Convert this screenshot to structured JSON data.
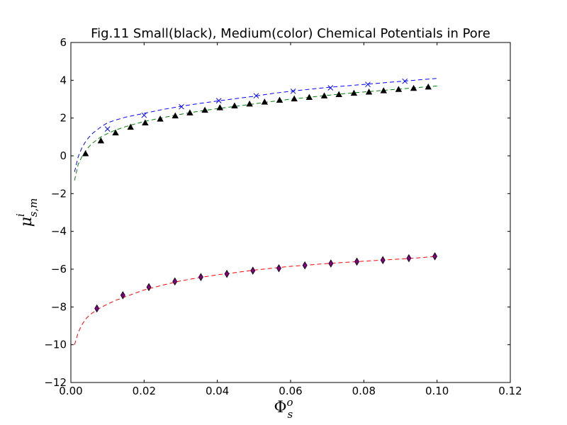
{
  "chart_data": {
    "type": "scatter",
    "title": "Fig.11 Small(black), Medium(color) Chemical Potentials in Pore",
    "xlabel": {
      "base": "Φ",
      "sub": "s",
      "sup": "o"
    },
    "ylabel": {
      "base": "μ",
      "sub": "s,m",
      "sup": "i"
    },
    "xlim": [
      0.0,
      0.12
    ],
    "ylim": [
      -12,
      6
    ],
    "xticks": [
      0.0,
      0.02,
      0.04,
      0.06,
      0.08,
      0.1,
      0.12
    ],
    "xtick_labels": [
      "0.00",
      "0.02",
      "0.04",
      "0.06",
      "0.08",
      "0.10",
      "0.12"
    ],
    "yticks": [
      -12,
      -10,
      -8,
      -6,
      -4,
      -2,
      0,
      2,
      4,
      6
    ],
    "ytick_labels": [
      "−12",
      "−10",
      "−8",
      "−6",
      "−4",
      "−2",
      "0",
      "2",
      "4",
      "6"
    ],
    "grid": false,
    "curves": [
      {
        "color": "#0000ff",
        "style": "dashed",
        "points": [
          [
            0.001,
            -0.85
          ],
          [
            0.002,
            -0.05
          ],
          [
            0.003,
            0.42
          ],
          [
            0.004,
            0.75
          ],
          [
            0.005,
            1.0
          ],
          [
            0.006,
            1.2
          ],
          [
            0.008,
            1.5
          ],
          [
            0.01,
            1.75
          ],
          [
            0.012,
            1.88
          ],
          [
            0.015,
            2.05
          ],
          [
            0.02,
            2.25
          ],
          [
            0.025,
            2.45
          ],
          [
            0.03,
            2.62
          ],
          [
            0.035,
            2.77
          ],
          [
            0.04,
            2.9
          ],
          [
            0.045,
            3.03
          ],
          [
            0.05,
            3.15
          ],
          [
            0.055,
            3.3
          ],
          [
            0.06,
            3.42
          ],
          [
            0.065,
            3.52
          ],
          [
            0.07,
            3.62
          ],
          [
            0.075,
            3.7
          ],
          [
            0.08,
            3.78
          ],
          [
            0.085,
            3.86
          ],
          [
            0.09,
            3.94
          ],
          [
            0.095,
            4.02
          ],
          [
            0.1,
            4.1
          ]
        ]
      },
      {
        "color": "#008000",
        "style": "dashed",
        "points": [
          [
            0.001,
            -1.3
          ],
          [
            0.002,
            -0.45
          ],
          [
            0.003,
            -0.05
          ],
          [
            0.004,
            0.25
          ],
          [
            0.005,
            0.5
          ],
          [
            0.006,
            0.68
          ],
          [
            0.008,
            0.98
          ],
          [
            0.01,
            1.18
          ],
          [
            0.012,
            1.35
          ],
          [
            0.015,
            1.55
          ],
          [
            0.02,
            1.82
          ],
          [
            0.025,
            2.02
          ],
          [
            0.03,
            2.2
          ],
          [
            0.035,
            2.36
          ],
          [
            0.04,
            2.5
          ],
          [
            0.045,
            2.62
          ],
          [
            0.05,
            2.75
          ],
          [
            0.055,
            2.88
          ],
          [
            0.06,
            3.0
          ],
          [
            0.065,
            3.1
          ],
          [
            0.07,
            3.2
          ],
          [
            0.075,
            3.3
          ],
          [
            0.08,
            3.38
          ],
          [
            0.085,
            3.46
          ],
          [
            0.09,
            3.54
          ],
          [
            0.095,
            3.62
          ],
          [
            0.1,
            3.7
          ]
        ]
      },
      {
        "color": "#ff0000",
        "style": "dashed",
        "points": [
          [
            0.001,
            -10.0
          ],
          [
            0.002,
            -9.35
          ],
          [
            0.003,
            -8.95
          ],
          [
            0.004,
            -8.65
          ],
          [
            0.005,
            -8.45
          ],
          [
            0.006,
            -8.3
          ],
          [
            0.008,
            -8.05
          ],
          [
            0.01,
            -7.85
          ],
          [
            0.012,
            -7.67
          ],
          [
            0.015,
            -7.45
          ],
          [
            0.02,
            -7.1
          ],
          [
            0.025,
            -6.85
          ],
          [
            0.03,
            -6.62
          ],
          [
            0.035,
            -6.45
          ],
          [
            0.04,
            -6.3
          ],
          [
            0.045,
            -6.18
          ],
          [
            0.05,
            -6.05
          ],
          [
            0.055,
            -5.95
          ],
          [
            0.06,
            -5.85
          ],
          [
            0.065,
            -5.78
          ],
          [
            0.07,
            -5.7
          ],
          [
            0.075,
            -5.64
          ],
          [
            0.08,
            -5.58
          ],
          [
            0.085,
            -5.52
          ],
          [
            0.09,
            -5.46
          ],
          [
            0.095,
            -5.4
          ],
          [
            0.1,
            -5.32
          ]
        ]
      }
    ],
    "markers": [
      {
        "symbol": "x",
        "color": "#0000ff",
        "points": [
          [
            0.01,
            1.42
          ],
          [
            0.02,
            2.15
          ],
          [
            0.0302,
            2.6
          ],
          [
            0.0404,
            2.92
          ],
          [
            0.0506,
            3.18
          ],
          [
            0.0607,
            3.42
          ],
          [
            0.0709,
            3.6
          ],
          [
            0.0811,
            3.78
          ],
          [
            0.0912,
            3.95
          ]
        ]
      },
      {
        "symbol": "triangle",
        "color": "#000000",
        "points": [
          [
            0.004,
            0.12
          ],
          [
            0.0082,
            0.8
          ],
          [
            0.0122,
            1.22
          ],
          [
            0.0163,
            1.52
          ],
          [
            0.0203,
            1.75
          ],
          [
            0.0244,
            1.95
          ],
          [
            0.0285,
            2.12
          ],
          [
            0.0325,
            2.28
          ],
          [
            0.0366,
            2.42
          ],
          [
            0.0407,
            2.55
          ],
          [
            0.0447,
            2.65
          ],
          [
            0.0488,
            2.75
          ],
          [
            0.0529,
            2.85
          ],
          [
            0.057,
            2.95
          ],
          [
            0.061,
            3.02
          ],
          [
            0.0651,
            3.1
          ],
          [
            0.0692,
            3.18
          ],
          [
            0.0732,
            3.25
          ],
          [
            0.0773,
            3.32
          ],
          [
            0.0814,
            3.38
          ],
          [
            0.0854,
            3.45
          ],
          [
            0.0895,
            3.52
          ],
          [
            0.0936,
            3.58
          ],
          [
            0.0976,
            3.65
          ]
        ]
      },
      {
        "symbol": "diamond",
        "color": "#800080",
        "points": [
          [
            0.0071,
            -8.08
          ],
          [
            0.0142,
            -7.38
          ],
          [
            0.0213,
            -6.95
          ],
          [
            0.0284,
            -6.65
          ],
          [
            0.0355,
            -6.42
          ],
          [
            0.0426,
            -6.25
          ],
          [
            0.0497,
            -6.08
          ],
          [
            0.0568,
            -5.95
          ],
          [
            0.0639,
            -5.8
          ],
          [
            0.071,
            -5.7
          ],
          [
            0.0781,
            -5.6
          ],
          [
            0.0852,
            -5.52
          ],
          [
            0.0923,
            -5.42
          ],
          [
            0.0994,
            -5.32
          ]
        ]
      }
    ]
  }
}
